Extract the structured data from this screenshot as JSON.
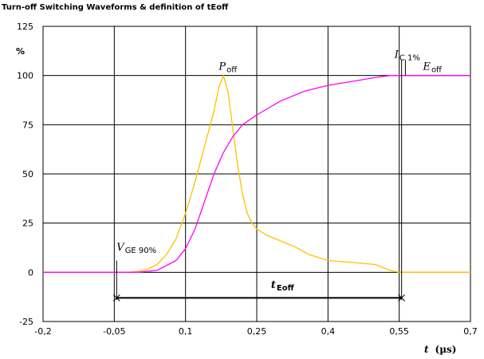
{
  "chart_data": {
    "type": "line",
    "title": "Turn-off Switching Waveforms & definition of tEoff",
    "ylabel": "%",
    "xlabel": {
      "main": "t",
      "unit": "(µs)"
    },
    "xlim": [
      -0.2,
      0.7
    ],
    "ylim": [
      -25,
      125
    ],
    "x_ticks": [
      -0.2,
      -0.05,
      0.1,
      0.25,
      0.4,
      0.55,
      0.7
    ],
    "x_tick_labels": [
      "-0,2",
      "-0,05",
      "0,1",
      "0,25",
      "0,4",
      "0,55",
      "0,7"
    ],
    "y_ticks": [
      -25,
      0,
      25,
      50,
      75,
      100,
      125
    ],
    "y_tick_labels": [
      "-25",
      "0",
      "25",
      "50",
      "75",
      "100",
      "125"
    ],
    "grid": true,
    "series": [
      {
        "name": "P_off",
        "color": "#ffc000",
        "x": [
          -0.2,
          -0.1,
          -0.06,
          -0.02,
          0.0,
          0.02,
          0.04,
          0.06,
          0.08,
          0.1,
          0.12,
          0.14,
          0.16,
          0.17,
          0.18,
          0.19,
          0.2,
          0.21,
          0.22,
          0.23,
          0.24,
          0.25,
          0.27,
          0.3,
          0.33,
          0.36,
          0.4,
          0.45,
          0.5,
          0.53,
          0.55,
          0.6,
          0.7
        ],
        "y": [
          0,
          0,
          0,
          0,
          0.5,
          1.5,
          4,
          9,
          17,
          30,
          46,
          64,
          82,
          94,
          100,
          91,
          72,
          54,
          40,
          30,
          25,
          22,
          19,
          16,
          13,
          9,
          6,
          5,
          4,
          1,
          0,
          0,
          0
        ]
      },
      {
        "name": "E_off",
        "color": "#ff00ff",
        "x": [
          -0.2,
          -0.05,
          0.0,
          0.04,
          0.08,
          0.1,
          0.12,
          0.14,
          0.16,
          0.18,
          0.2,
          0.22,
          0.25,
          0.3,
          0.35,
          0.4,
          0.45,
          0.5,
          0.53,
          0.55,
          0.6,
          0.7
        ],
        "y": [
          0,
          0,
          0,
          1,
          6,
          12,
          22,
          36,
          50,
          61,
          69,
          75,
          80,
          87,
          92,
          95,
          97,
          99,
          100,
          100,
          100,
          100
        ]
      }
    ],
    "annotations": {
      "p_off": {
        "main": "P",
        "sub": "off",
        "x": 0.17,
        "y": 103
      },
      "e_off": {
        "main": "E",
        "sub": "off",
        "x": 0.6,
        "y": 103
      },
      "ic_1pct": {
        "main": "I",
        "sub": "C 1%",
        "x": 0.54,
        "y": 109
      },
      "vge_90pct": {
        "main": "V",
        "sub": "GE 90%",
        "x": -0.045,
        "y": 11
      },
      "t_eoff": {
        "main": "t",
        "sub": "Eoff",
        "x": 0.28,
        "y": -8,
        "x_start": -0.045,
        "x_end": 0.555,
        "y_arrow": -13
      },
      "vline_vge": {
        "x": -0.045,
        "y_top": 6,
        "y_bottom": -14
      },
      "vline_ic1": {
        "x1": 0.555,
        "x2": 0.563,
        "y_top": 108,
        "y_bottom": -14
      }
    }
  }
}
